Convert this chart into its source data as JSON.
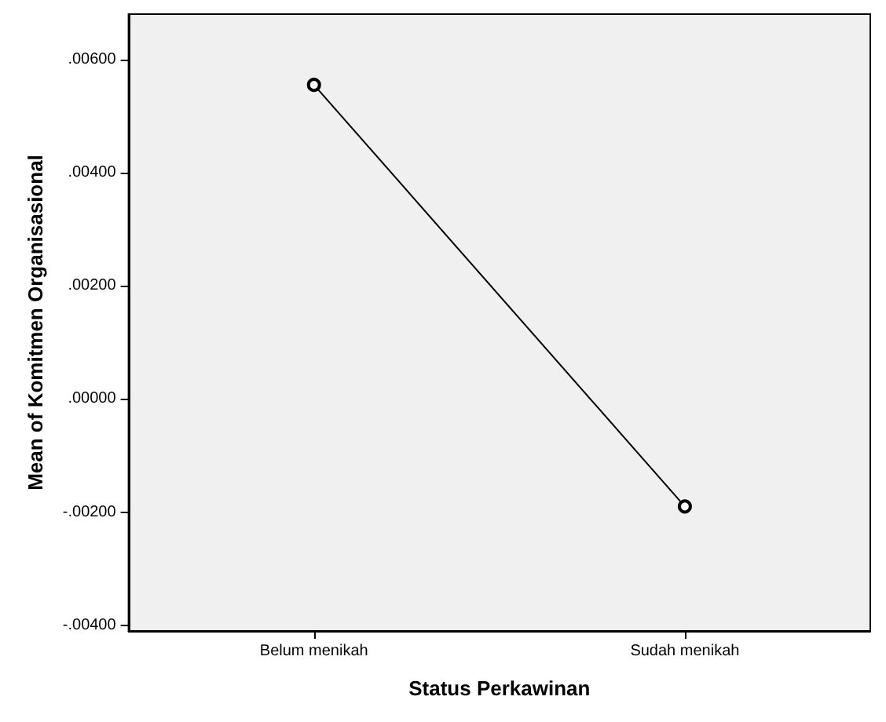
{
  "chart_data": {
    "type": "line",
    "xlabel": "Status Perkawinan",
    "ylabel": "Mean of Komitmen Organisasional",
    "categories": [
      "Belum menikah",
      "Sudah menikah"
    ],
    "series": [
      {
        "color": "#000000",
        "values": [
          0.00555,
          -0.0019
        ]
      }
    ],
    "ylim": [
      -0.0041,
      0.0068
    ],
    "yticks": [
      {
        "value": -0.004,
        "label": "-.00400"
      },
      {
        "value": -0.002,
        "label": "-.00200"
      },
      {
        "value": 0,
        "label": ".00000"
      },
      {
        "value": 0.002,
        "label": ".00200"
      },
      {
        "value": 0.004,
        "label": ".00400"
      },
      {
        "value": 0.006,
        "label": ".00600"
      }
    ],
    "grid": false,
    "marker": "circle",
    "line_style": "solid"
  }
}
